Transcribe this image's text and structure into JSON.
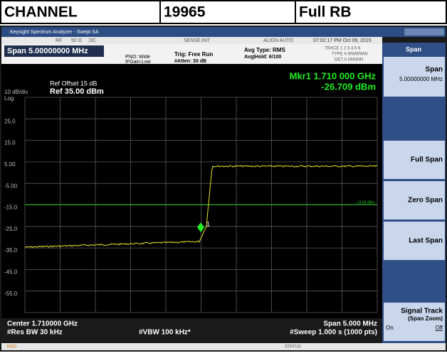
{
  "header": {
    "cells": [
      "CHANNEL",
      "19965",
      "Full RB"
    ]
  },
  "window": {
    "title": "Keysight Spectrum Analyzer - Swept SA",
    "status": [
      "RF",
      "50 Ω",
      "DC",
      "SENSE:INT",
      "ALIGN AUTO",
      "07:02:17 PM Oct 09, 2015"
    ],
    "msg": "MSG",
    "status_label": "STATUS"
  },
  "info": {
    "span": "Span 5.00000000 MHz",
    "pno": "PNO: Wide",
    "ifgain": "IFGain:Low",
    "trig": "Trig: Free Run",
    "atten": "#Atten: 30 dB",
    "avg_type": "Avg Type: RMS",
    "avg_hold": "Avg|Hold: 6/100",
    "trace": "TRACE 1 2 3 4 5 6",
    "type": "TYPE A WWWWW",
    "det": "DET A NNNNN"
  },
  "plot": {
    "ref_offset": "Ref Offset 15 dB",
    "ref_level": "Ref 35.00 dBm",
    "scale": "10 dB/div",
    "scale_type": "Log",
    "marker_freq": "Mkr1 1.710 000 GHz",
    "marker_level": "-26.709 dBm",
    "marker_number": "1",
    "display_line": "-13.00 dBm",
    "y_labels": [
      "25.0",
      "15.0",
      "5.00",
      "-5.00",
      "-15.0",
      "-25.0",
      "-35.0",
      "-45.0",
      "-55.0"
    ],
    "center": "Center 1.710000 GHz",
    "span": "Span 5.000 MHz",
    "res_bw": "#Res BW 30 kHz",
    "vbw": "#VBW 100 kHz*",
    "sweep": "#Sweep  1.000 s (1000 pts)"
  },
  "softkeys": {
    "menu": "Span",
    "keys": [
      {
        "label": "Span",
        "value": "5.00000000 MHz"
      },
      {
        "label": "Full Span"
      },
      {
        "label": "Zero Span"
      },
      {
        "label": "Last Span"
      },
      {
        "label": "Signal Track",
        "sub": "(Span Zoom)",
        "on": "On",
        "off": "Off"
      }
    ]
  }
}
